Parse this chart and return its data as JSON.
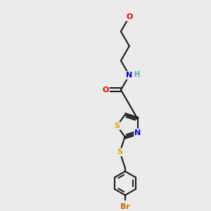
{
  "background_color": "#ebebeb",
  "bond_color": "#1a1a1a",
  "colors": {
    "N": "#0000dd",
    "O": "#ee0000",
    "S": "#ccaa00",
    "Br": "#cc6600",
    "H": "#44aaaa",
    "C": "#1a1a1a"
  },
  "font_size": 8.0,
  "fig_size": [
    3.0,
    3.0
  ],
  "dpi": 100
}
